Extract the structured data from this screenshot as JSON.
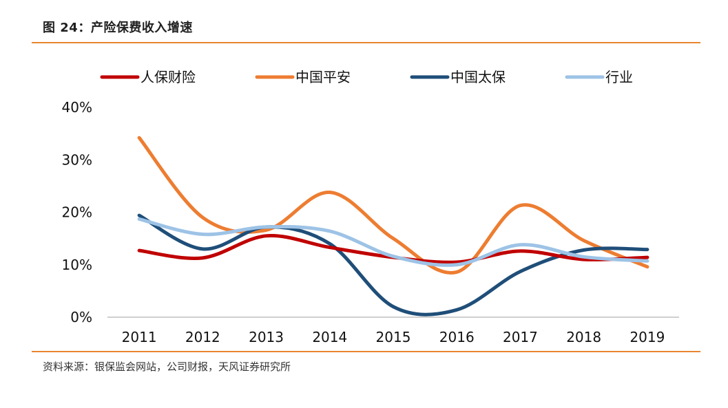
{
  "figure": {
    "title": "图 24：产险保费收入增速",
    "source": "资料来源：银保监会网站，公司财报，天风证券研究所"
  },
  "colors": {
    "accent_rule": "#e8852f"
  },
  "chart_data": {
    "type": "line",
    "title": "",
    "xlabel": "",
    "ylabel": "",
    "categories": [
      "2011",
      "2012",
      "2013",
      "2014",
      "2015",
      "2016",
      "2017",
      "2018",
      "2019"
    ],
    "ylim": [
      0,
      40
    ],
    "yticks": [
      0,
      10,
      20,
      30,
      40
    ],
    "ytick_labels": [
      "0%",
      "10%",
      "20%",
      "30%",
      "40%"
    ],
    "grid": false,
    "smooth": true,
    "legend_position": "top",
    "series": [
      {
        "name": "人保财险",
        "color": "#c00000",
        "values": [
          12.7,
          11.3,
          15.5,
          13.3,
          11.4,
          10.5,
          12.6,
          11.0,
          11.4
        ]
      },
      {
        "name": "中国平安",
        "color": "#ed7d31",
        "values": [
          34.2,
          19.0,
          16.6,
          23.8,
          15.0,
          8.6,
          21.3,
          14.6,
          9.6
        ]
      },
      {
        "name": "中国太保",
        "color": "#1f4e79",
        "values": [
          19.4,
          13.0,
          17.2,
          14.0,
          2.0,
          1.4,
          8.7,
          12.8,
          12.9
        ]
      },
      {
        "name": "行业",
        "color": "#9dc3e6",
        "values": [
          18.7,
          15.8,
          17.2,
          16.4,
          11.6,
          10.0,
          13.8,
          11.5,
          10.7
        ]
      }
    ]
  }
}
